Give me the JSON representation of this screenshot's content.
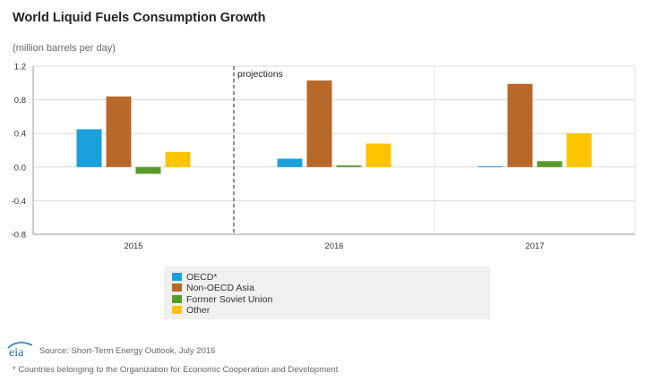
{
  "title": "World Liquid Fuels Consumption Growth",
  "unit_label": "(million barrels per day)",
  "chart_data": {
    "type": "bar",
    "categories": [
      "2015",
      "2016",
      "2017"
    ],
    "series": [
      {
        "name": "OECD*",
        "color": "#1aa0db",
        "values": [
          0.45,
          0.1,
          0.01
        ]
      },
      {
        "name": "Non-OECD Asia",
        "color": "#b8692a",
        "values": [
          0.84,
          1.03,
          0.99
        ]
      },
      {
        "name": "Former Soviet Union",
        "color": "#5a9a2c",
        "values": [
          -0.08,
          0.02,
          0.07
        ]
      },
      {
        "name": "Other",
        "color": "#ffc400",
        "values": [
          0.18,
          0.28,
          0.4
        ]
      }
    ],
    "ylim": [
      -0.8,
      1.2
    ],
    "yticks": [
      "-0.8",
      "-0.4",
      "0.0",
      "0.4",
      "0.8",
      "1.2"
    ],
    "annotation": "projections",
    "grid": true,
    "legend_position": "bottom"
  },
  "legend": [
    {
      "label": "OECD*",
      "color": "#1aa0db"
    },
    {
      "label": "Non-OECD Asia",
      "color": "#b8692a"
    },
    {
      "label": "Former Soviet Union",
      "color": "#5a9a2c"
    },
    {
      "label": "Other",
      "color": "#ffc400"
    }
  ],
  "logo_text": "eia",
  "source": "Source: Short-Term Energy Outlook, July 2016",
  "footnote": "* Countries belonging to the Organization for Economic Cooperation and Development"
}
